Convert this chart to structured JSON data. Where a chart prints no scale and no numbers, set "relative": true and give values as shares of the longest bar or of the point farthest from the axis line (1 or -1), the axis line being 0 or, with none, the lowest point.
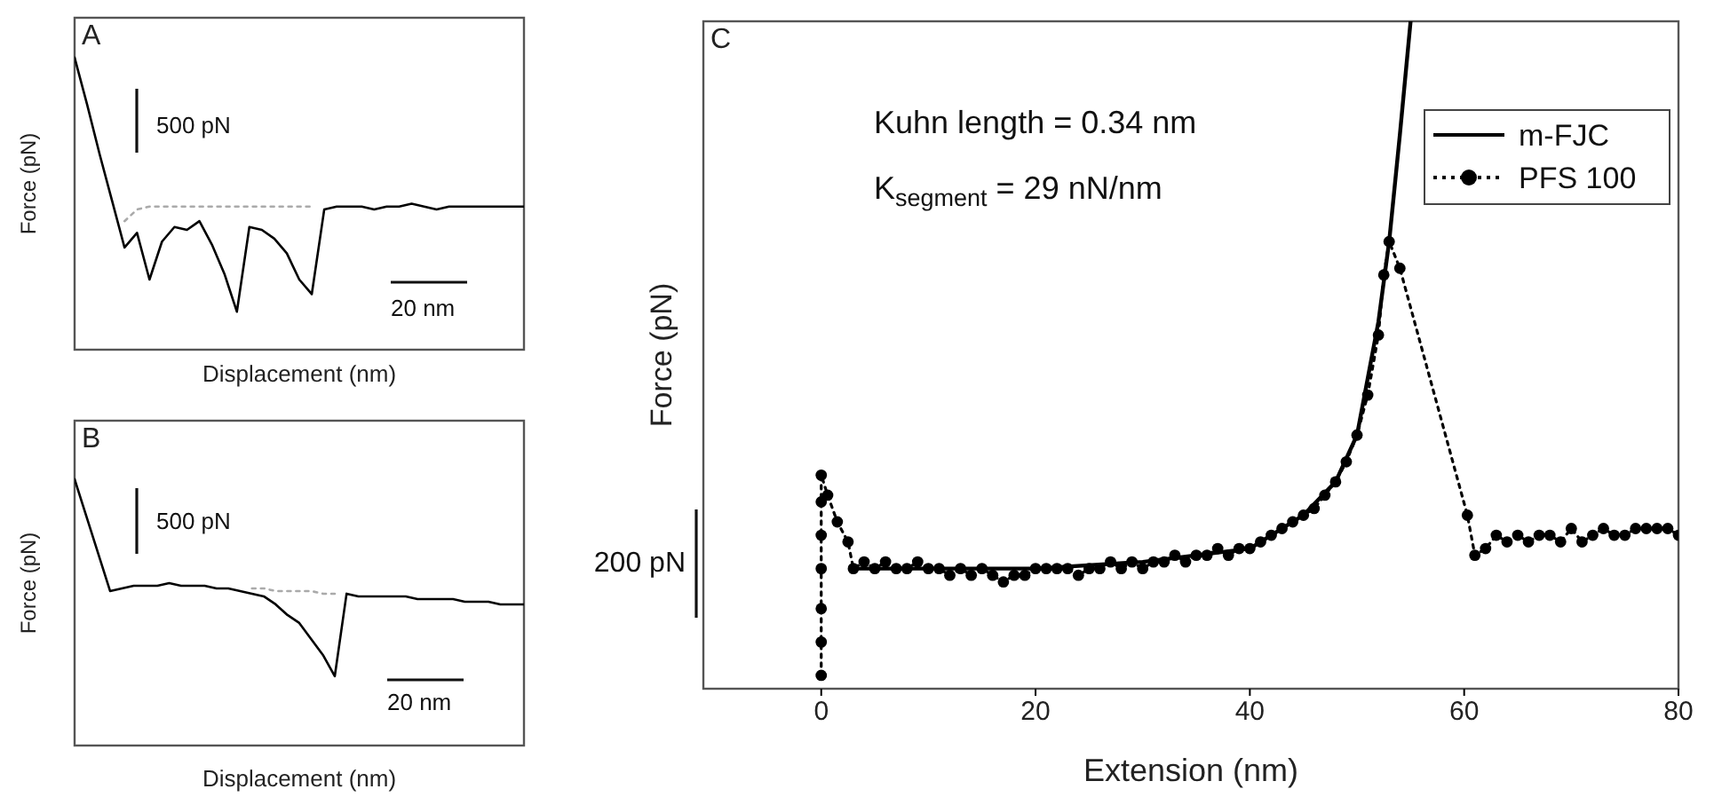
{
  "chart_data": [
    {
      "type": "line",
      "title": "A",
      "xlabel": "Displacement (nm)",
      "ylabel": "Force (pN)",
      "relative": true,
      "tick_labels": false,
      "annotations": [
        "500 pN",
        "20 nm"
      ],
      "categories": [
        null,
        null,
        null,
        null,
        null,
        null,
        null,
        null,
        null,
        null,
        null,
        null,
        null,
        null,
        null,
        null,
        null,
        null,
        null,
        null,
        null,
        null,
        null,
        null,
        null,
        null,
        null,
        null,
        null,
        null,
        null,
        null,
        null,
        null,
        null,
        null,
        null
      ],
      "series": [
        {
          "color": "#000000",
          "values": [
            1,
            0.84,
            0.67,
            0.51,
            0.35,
            0.4,
            0.24,
            0.37,
            0.42,
            0.41,
            0.44,
            0.36,
            0.26,
            0.13,
            0.42,
            0.41,
            0.38,
            0.33,
            0.24,
            0.19,
            0.48,
            0.49,
            0.49,
            0.49,
            0.48,
            0.49,
            0.49,
            0.5,
            0.49,
            0.48,
            0.49,
            0.49,
            0.49,
            0.49,
            0.49,
            0.49,
            0.49
          ]
        },
        {
          "color": "#aaaaaa",
          "line_style": "dotted",
          "values": [
            null,
            null,
            null,
            null,
            0.44,
            0.48,
            0.49,
            0.49,
            0.49,
            0.49,
            0.49,
            0.49,
            0.49,
            0.49,
            0.49,
            0.49,
            0.49,
            0.49,
            0.49,
            0.49,
            null,
            null,
            null,
            null,
            null,
            null,
            null,
            null,
            null,
            null,
            null,
            null,
            null,
            null,
            null,
            null,
            null
          ]
        }
      ]
    },
    {
      "type": "line",
      "title": "B",
      "xlabel": "Displacement (nm)",
      "ylabel": "Force (pN)",
      "relative": true,
      "tick_labels": false,
      "annotations": [
        "500 pN",
        "20 nm"
      ],
      "categories": [
        null,
        null,
        null,
        null,
        null,
        null,
        null,
        null,
        null,
        null,
        null,
        null,
        null,
        null,
        null,
        null,
        null,
        null,
        null,
        null,
        null,
        null,
        null,
        null,
        null,
        null,
        null,
        null,
        null,
        null,
        null,
        null,
        null,
        null,
        null,
        null,
        null,
        null,
        null
      ],
      "series": [
        {
          "color": "#000000",
          "values": [
            1,
            0.86,
            0.72,
            0.58,
            0.59,
            0.6,
            0.6,
            0.6,
            0.61,
            0.6,
            0.6,
            0.6,
            0.59,
            0.59,
            0.58,
            0.57,
            0.56,
            0.53,
            0.49,
            0.46,
            0.4,
            0.34,
            0.26,
            0.57,
            0.56,
            0.56,
            0.56,
            0.56,
            0.56,
            0.55,
            0.55,
            0.55,
            0.55,
            0.54,
            0.54,
            0.54,
            0.53,
            0.53,
            0.53
          ]
        },
        {
          "color": "#aaaaaa",
          "line_style": "dotted",
          "values": [
            null,
            null,
            null,
            null,
            null,
            null,
            null,
            null,
            null,
            null,
            null,
            null,
            null,
            null,
            null,
            0.59,
            0.59,
            0.58,
            0.58,
            0.58,
            0.58,
            0.57,
            0.57,
            null,
            null,
            null,
            null,
            null,
            null,
            null,
            null,
            null,
            null,
            null,
            null,
            null,
            null,
            null,
            null
          ]
        }
      ]
    },
    {
      "type": "line",
      "title": "C",
      "xlabel": "Extension (nm)",
      "ylabel": "Force (pN)",
      "relative": true,
      "tick_labels": "x",
      "legend": "top right",
      "annotations": [
        "Kuhn length = 0.34 nm",
        "K$_{segment}$ = 29 nN/nm",
        "200 pN"
      ],
      "xlim": [
        -11,
        80
      ],
      "xticks": [
        0,
        20,
        40,
        60,
        80
      ],
      "series": [
        {
          "name": "m-FJC",
          "color": "#000000",
          "line_style": "solid",
          "x": [
            3,
            10,
            20,
            30,
            40,
            45,
            48,
            50,
            52,
            53,
            54,
            55
          ],
          "values": [
            0.18,
            0.18,
            0.18,
            0.19,
            0.21,
            0.26,
            0.31,
            0.38,
            0.55,
            0.67,
            0.83,
            1
          ]
        },
        {
          "name": "PFS 100",
          "color": "#000000",
          "line_style": "dotted",
          "marker": "circle",
          "x": [
            0,
            0,
            0,
            0,
            0,
            0,
            0,
            0.6,
            1.5,
            2.5,
            3,
            4,
            5,
            6,
            7,
            8,
            9,
            10,
            11,
            12,
            13,
            14,
            15,
            16,
            17,
            18,
            19,
            20,
            21,
            22,
            23,
            24,
            25,
            26,
            27,
            28,
            29,
            30,
            31,
            32,
            33,
            34,
            35,
            36,
            37,
            38,
            39,
            40,
            41,
            42,
            43,
            44,
            45,
            46,
            47,
            48,
            49,
            50,
            51,
            52,
            52.5,
            53,
            54,
            60.3,
            61,
            62,
            63,
            64,
            65,
            66,
            67,
            68,
            69,
            70,
            71,
            72,
            73,
            74,
            75,
            76,
            77,
            78,
            79,
            80
          ],
          "values": [
            0.02,
            0.07,
            0.12,
            0.18,
            0.23,
            0.28,
            0.32,
            0.29,
            0.25,
            0.22,
            0.18,
            0.19,
            0.18,
            0.19,
            0.18,
            0.18,
            0.19,
            0.18,
            0.18,
            0.17,
            0.18,
            0.17,
            0.18,
            0.17,
            0.16,
            0.17,
            0.17,
            0.18,
            0.18,
            0.18,
            0.18,
            0.17,
            0.18,
            0.18,
            0.19,
            0.18,
            0.19,
            0.18,
            0.19,
            0.19,
            0.2,
            0.19,
            0.2,
            0.2,
            0.21,
            0.2,
            0.21,
            0.21,
            0.22,
            0.23,
            0.24,
            0.25,
            0.26,
            0.27,
            0.29,
            0.31,
            0.34,
            0.38,
            0.44,
            0.53,
            0.62,
            0.67,
            0.63,
            0.26,
            0.2,
            0.21,
            0.23,
            0.22,
            0.23,
            0.22,
            0.23,
            0.23,
            0.22,
            0.24,
            0.22,
            0.23,
            0.24,
            0.23,
            0.23,
            0.24,
            0.24,
            0.24,
            0.24,
            0.23
          ]
        }
      ]
    }
  ]
}
